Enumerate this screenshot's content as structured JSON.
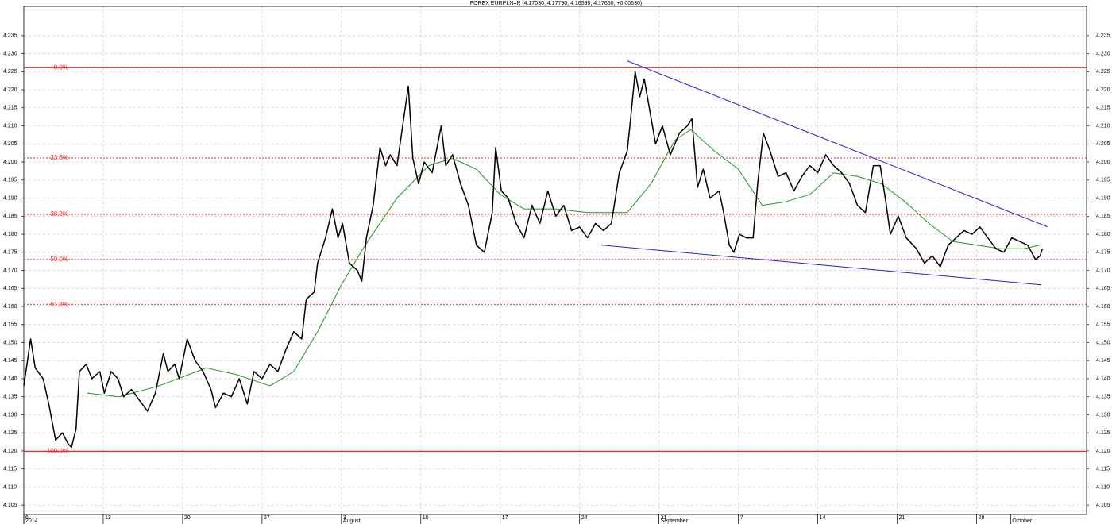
{
  "chart_data": {
    "type": "line",
    "title": "FOREX EURPLN=R (4.17030, 4.17790, 4.16590, 4.17660, +0.00630)",
    "xlim": [
      0,
      93.7
    ],
    "ylim": [
      4.1024,
      4.2431
    ],
    "yticks": [
      4.105,
      {
        "value": 4.11,
        "label": "4.110"
      },
      4.115,
      {
        "value": 4.12,
        "label": "4.120"
      },
      4.125,
      {
        "value": 4.13,
        "label": "4.130"
      },
      4.135,
      {
        "value": 4.14,
        "label": "4.140"
      },
      4.145,
      {
        "value": 4.15,
        "label": "4.150"
      },
      4.155,
      {
        "value": 4.16,
        "label": "4.160"
      },
      4.165,
      {
        "value": 4.17,
        "label": "4.170"
      },
      4.175,
      {
        "value": 4.18,
        "label": "4.180"
      },
      4.185,
      {
        "value": 4.19,
        "label": "4.190"
      },
      4.195,
      {
        "value": 4.2,
        "label": "4.200"
      },
      4.205,
      {
        "value": 4.21,
        "label": "4.210"
      },
      4.215,
      {
        "value": 4.22,
        "label": "4.220"
      },
      4.225,
      {
        "value": 4.23,
        "label": "4.230"
      },
      4.235
    ],
    "xticks": [
      {
        "value": 0,
        "label": "6"
      },
      {
        "value": 7,
        "label": "13"
      },
      {
        "value": 14,
        "label": "20"
      },
      {
        "value": 21,
        "label": "27"
      },
      {
        "value": 28,
        "label": "3"
      },
      {
        "value": 35,
        "label": "10"
      },
      {
        "value": 42,
        "label": "17"
      },
      {
        "value": 49,
        "label": "24"
      },
      {
        "value": 56,
        "label": "31"
      },
      {
        "value": 63,
        "label": "7"
      },
      {
        "value": 70,
        "label": "14"
      },
      {
        "value": 77,
        "label": "21"
      },
      {
        "value": 84,
        "label": "28"
      }
    ],
    "period_labels": [
      {
        "value": 0,
        "label": "2014"
      },
      {
        "value": 28,
        "label": "August"
      },
      {
        "value": 56,
        "label": "September"
      },
      {
        "value": 87,
        "label": "October"
      }
    ],
    "grid": true,
    "series": [
      {
        "color": "#000000",
        "x": [
          0.0,
          0.6,
          1.0,
          1.7,
          2.2,
          2.8,
          3.4,
          3.9,
          4.2,
          4.6,
          4.9,
          5.5,
          6.0,
          6.7,
          7.1,
          7.7,
          8.3,
          8.8,
          9.5,
          10.2,
          10.9,
          11.6,
          12.3,
          12.7,
          13.3,
          13.7,
          14.4,
          15.1,
          15.8,
          16.5,
          16.9,
          17.6,
          18.3,
          19.0,
          19.7,
          20.3,
          21.0,
          21.7,
          22.4,
          23.1,
          23.8,
          24.5,
          24.9,
          25.6,
          25.9,
          26.6,
          27.2,
          27.7,
          28.1,
          28.7,
          29.4,
          29.8,
          30.2,
          30.8,
          31.4,
          31.9,
          32.3,
          32.9,
          33.4,
          33.9,
          34.3,
          34.8,
          35.3,
          36.0,
          36.8,
          37.2,
          37.8,
          38.5,
          39.2,
          39.9,
          40.6,
          41.3,
          41.6,
          42.1,
          42.7,
          43.4,
          44.1,
          44.8,
          45.5,
          46.2,
          46.9,
          47.6,
          48.3,
          49.0,
          49.7,
          50.4,
          51.1,
          51.8,
          52.5,
          53.2,
          53.5,
          53.9,
          54.3,
          54.7,
          55.2,
          55.7,
          56.3,
          57.0,
          57.8,
          58.5,
          58.9,
          59.4,
          59.9,
          60.5,
          61.3,
          61.7,
          62.2,
          62.6,
          63.1,
          63.7,
          64.3,
          64.7,
          65.2,
          65.8,
          66.5,
          67.2,
          67.9,
          68.6,
          69.3,
          70.0,
          70.7,
          71.4,
          72.1,
          72.8,
          73.5,
          74.2,
          74.9,
          75.5,
          76.0,
          76.4,
          77.1,
          77.8,
          78.7,
          79.4,
          80.1,
          80.8,
          81.5,
          82.2,
          82.9,
          83.6,
          84.3,
          85.0,
          85.7,
          86.4,
          87.1,
          87.8,
          88.5,
          89.2,
          89.6,
          89.8
        ],
        "values": [
          4.138,
          4.151,
          4.143,
          4.14,
          4.133,
          4.123,
          4.125,
          4.122,
          4.121,
          4.126,
          4.142,
          4.144,
          4.14,
          4.142,
          4.136,
          4.142,
          4.14,
          4.135,
          4.137,
          4.134,
          4.131,
          4.136,
          4.147,
          4.142,
          4.144,
          4.14,
          4.151,
          4.145,
          4.142,
          4.137,
          4.132,
          4.136,
          4.135,
          4.14,
          4.133,
          4.142,
          4.14,
          4.144,
          4.142,
          4.148,
          4.153,
          4.151,
          4.162,
          4.164,
          4.172,
          4.179,
          4.187,
          4.179,
          4.183,
          4.172,
          4.17,
          4.167,
          4.179,
          4.188,
          4.204,
          4.199,
          4.202,
          4.199,
          4.21,
          4.221,
          4.201,
          4.194,
          4.2,
          4.197,
          4.21,
          4.199,
          4.202,
          4.194,
          4.188,
          4.177,
          4.175,
          4.186,
          4.204,
          4.192,
          4.19,
          4.183,
          4.179,
          4.188,
          4.183,
          4.192,
          4.185,
          4.188,
          4.181,
          4.182,
          4.179,
          4.183,
          4.181,
          4.183,
          4.197,
          4.203,
          4.212,
          4.225,
          4.218,
          4.223,
          4.214,
          4.205,
          4.21,
          4.202,
          4.208,
          4.21,
          4.212,
          4.193,
          4.198,
          4.19,
          4.192,
          4.186,
          4.177,
          4.175,
          4.18,
          4.179,
          4.179,
          4.194,
          4.208,
          4.203,
          4.196,
          4.197,
          4.192,
          4.196,
          4.199,
          4.197,
          4.202,
          4.199,
          4.197,
          4.194,
          4.188,
          4.186,
          4.199,
          4.199,
          4.189,
          4.18,
          4.185,
          4.179,
          4.176,
          4.172,
          4.174,
          4.171,
          4.177,
          4.179,
          4.181,
          4.18,
          4.182,
          4.179,
          4.176,
          4.175,
          4.179,
          4.178,
          4.177,
          4.173,
          4.174,
          4.176
        ]
      },
      {
        "color": "#1a9a1a",
        "x": [
          5.6,
          8.4,
          11.9,
          16.1,
          18.9,
          21.7,
          23.8,
          25.9,
          28.0,
          30.1,
          32.9,
          35.7,
          37.8,
          39.9,
          42.0,
          44.1,
          46.9,
          49.7,
          53.2,
          55.3,
          57.4,
          58.8,
          60.9,
          63.0,
          65.1,
          67.2,
          69.3,
          71.4,
          73.5,
          75.6,
          77.7,
          79.8,
          81.9,
          84.0,
          86.1,
          88.2,
          89.6
        ],
        "values": [
          4.136,
          4.135,
          4.138,
          4.143,
          4.141,
          4.138,
          4.142,
          4.153,
          4.166,
          4.177,
          4.19,
          4.199,
          4.201,
          4.198,
          4.191,
          4.187,
          4.187,
          4.186,
          4.186,
          4.194,
          4.206,
          4.209,
          4.203,
          4.198,
          4.188,
          4.189,
          4.191,
          4.197,
          4.196,
          4.194,
          4.189,
          4.183,
          4.178,
          4.177,
          4.176,
          4.176,
          4.177
        ]
      }
    ],
    "trend_lines": [
      {
        "color": "#2020e0",
        "x": [
          53.2,
          90.3
        ],
        "values": [
          4.228,
          4.182
        ]
      },
      {
        "color": "#2020e0",
        "x": [
          50.9,
          89.7
        ],
        "values": [
          4.177,
          4.166
        ]
      }
    ],
    "levels": [
      {
        "label": "0.0%",
        "value": 4.2261,
        "style": "solid"
      },
      {
        "label": "23.6%",
        "value": 4.2011,
        "style": "dotted"
      },
      {
        "label": "38.2%",
        "value": 4.1855,
        "style": "dotted"
      },
      {
        "label": "50.0%",
        "value": 4.173,
        "style": "dotted"
      },
      {
        "label": "61.8%",
        "value": 4.1605,
        "style": "dotted"
      },
      {
        "label": "100.0%",
        "value": 4.1199,
        "style": "solid"
      }
    ],
    "level_color": "#ff2020"
  }
}
